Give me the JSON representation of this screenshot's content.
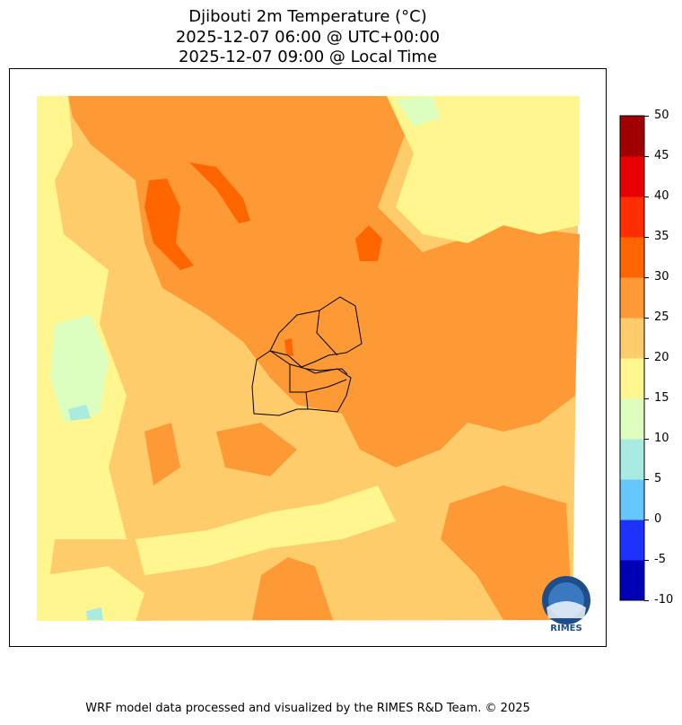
{
  "title": {
    "line1": "Djibouti 2m Temperature (°C)",
    "line2": "2025-12-07 06:00 @ UTC+00:00",
    "line3": "2025-12-07 09:00 @ Local Time"
  },
  "colorbar": {
    "levels": [
      "-10",
      "-5",
      "0",
      "5",
      "10",
      "15",
      "20",
      "25",
      "30",
      "35",
      "40",
      "45",
      "50"
    ],
    "colors": [
      "#0000b4",
      "#1e32ff",
      "#64c8ff",
      "#a8ebe0",
      "#dcffc0",
      "#fff68f",
      "#ffcc6b",
      "#fd9a35",
      "#ff6600",
      "#ff2d00",
      "#e60000",
      "#a00000"
    ]
  },
  "map": {
    "dominant_ranges": [
      "20-25",
      "25-30"
    ],
    "boundaries": "Djibouti regions outline"
  },
  "logo": {
    "text": "RIMES"
  },
  "footer": "WRF model data processed and visualized by the RIMES R&D Team. © 2025"
}
